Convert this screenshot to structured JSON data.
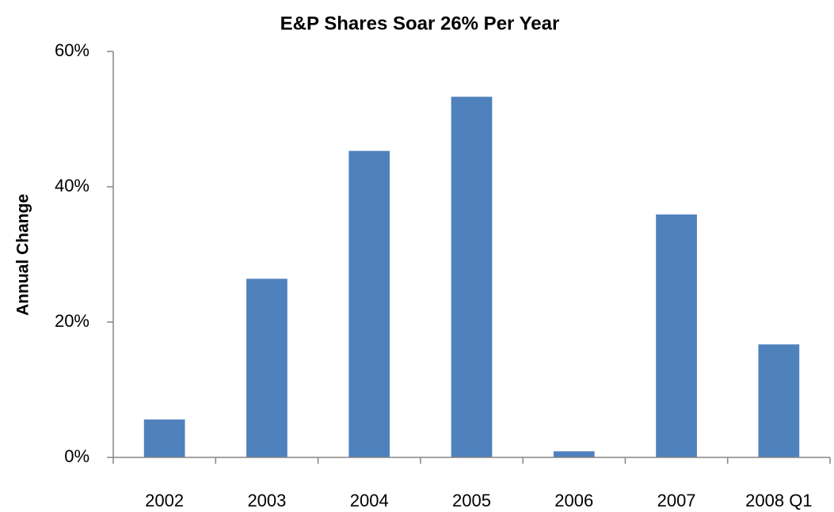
{
  "chart_data": {
    "type": "bar",
    "title": "E&P Shares Soar 26% Per Year",
    "y_label": "Annual Change",
    "categories": [
      "2002",
      "2003",
      "2004",
      "2005",
      "2006",
      "2007",
      "2008 Q1"
    ],
    "values": [
      5.6,
      26.4,
      45.3,
      53.3,
      0.9,
      35.9,
      16.7
    ],
    "color": "#4f81bd",
    "ylim": [
      0,
      60
    ],
    "yticks": [
      {
        "value": 0,
        "label": "0%"
      },
      {
        "value": 20,
        "label": "20%"
      },
      {
        "value": 40,
        "label": "40%"
      },
      {
        "value": 60,
        "label": "60%"
      }
    ],
    "grid": false
  }
}
